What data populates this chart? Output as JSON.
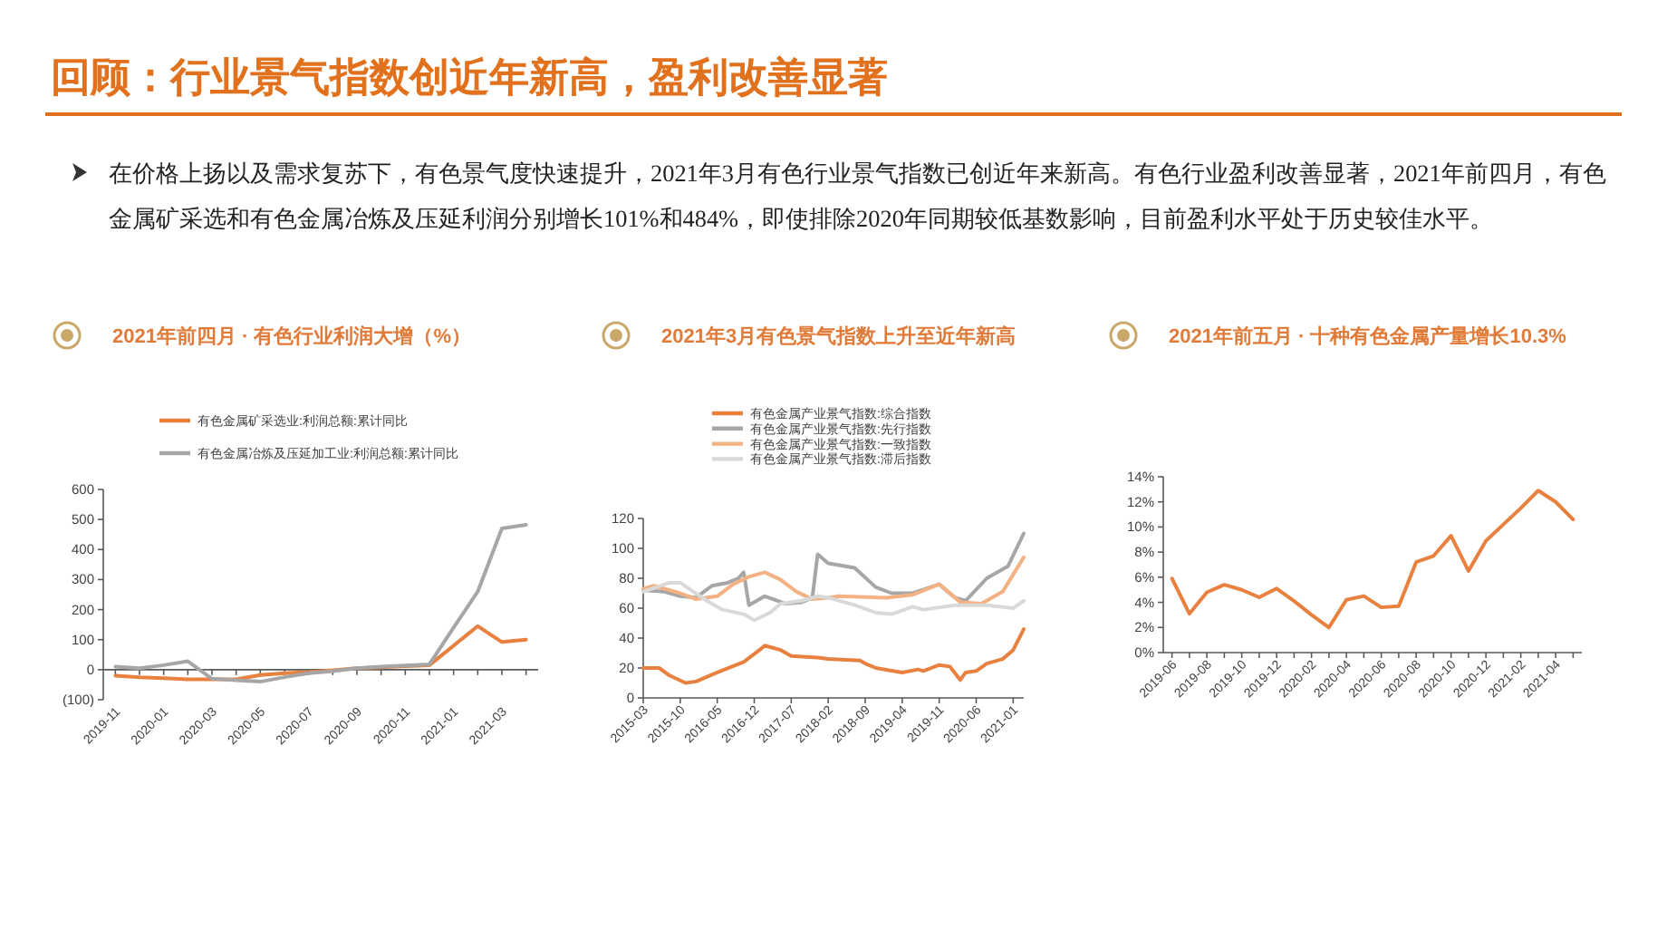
{
  "chart_data": [
    {
      "type": "other",
      "title": "回顾：行业景气指数创近年新高，盈利改善显著",
      "annotations": [
        "在价格上扬以及需求复苏下，有色景气度快速提升，2021年3月有色行业景气指数已创近年来新高。有色行业盈利改善显著，2021年前四月，有色金属矿采选和有色金属冶炼及压延利润分别增长101%和484%，即使排除2020年同期较低基数影响，目前盈利水平处于历史较佳水平。"
      ]
    },
    {
      "type": "line",
      "title": "2021年前四月 · 有色行业利润大增（%）",
      "legend": "top",
      "categories": [
        "2019-11",
        null,
        "2020-01",
        null,
        "2020-03",
        null,
        "2020-05",
        null,
        "2020-07",
        null,
        "2020-09",
        null,
        "2020-11",
        null,
        "2021-01",
        null,
        "2021-03",
        null
      ],
      "ylim": [
        -100,
        600
      ],
      "yticks": [
        {
          "value": -100,
          "label": "(100)"
        },
        0,
        100,
        200,
        300,
        400,
        500,
        600
      ],
      "series": [
        {
          "name": "有色金属矿采选业:利润总额:累计同比",
          "color": "#e8803f",
          "values": [
            -20,
            -25,
            -28,
            -32,
            -32,
            -32,
            -18,
            -12,
            -8,
            -2,
            5,
            8,
            12,
            15,
            80,
            145,
            92,
            100
          ]
        },
        {
          "name": "有色金属冶炼及压延加工业:利润总额:累计同比",
          "color": "#a6a6a6",
          "values": [
            10,
            5,
            15,
            28,
            -30,
            -35,
            -40,
            -25,
            -12,
            -5,
            5,
            10,
            14,
            18,
            140,
            260,
            470,
            482
          ]
        }
      ]
    },
    {
      "type": "line",
      "title": "2021年3月有色景气指数上升至近年新高",
      "legend": "top",
      "xlim": [
        "2015-03",
        "2021-03"
      ],
      "xticks": [
        "2015-03",
        "2015-10",
        "2016-05",
        "2016-12",
        "2017-07",
        "2018-02",
        "2018-09",
        "2019-04",
        "2019-11",
        "2020-06",
        "2021-01"
      ],
      "ylim": [
        0,
        120
      ],
      "yticks": [
        0,
        20,
        40,
        60,
        80,
        100,
        120
      ],
      "series": [
        {
          "name": "有色金属产业景气指数:综合指数",
          "color": "#e8803f",
          "x": [
            "2015-03",
            "2015-06",
            "2015-08",
            "2015-11",
            "2016-01",
            "2016-05",
            "2016-10",
            "2017-01",
            "2017-02",
            "2017-05",
            "2017-07",
            "2017-12",
            "2018-02",
            "2018-08",
            "2018-09",
            "2018-11",
            "2019-04",
            "2019-07",
            "2019-08",
            "2019-11",
            "2020-01",
            "2020-03",
            "2020-04",
            "2020-06",
            "2020-08",
            "2020-11",
            "2021-01",
            "2021-03"
          ],
          "values": [
            20,
            20,
            15,
            10,
            11,
            17,
            24,
            32,
            35,
            32,
            28,
            27,
            26,
            25,
            23,
            20,
            17,
            19,
            18,
            22,
            21,
            12,
            17,
            18,
            23,
            26,
            32,
            46
          ]
        },
        {
          "name": "有色金属产业景气指数:先行指数",
          "color": "#a6a6a6",
          "x": [
            "2015-03",
            "2015-07",
            "2015-10",
            "2016-01",
            "2016-04",
            "2016-07",
            "2016-09",
            "2016-10",
            "2016-11",
            "2017-02",
            "2017-06",
            "2017-09",
            "2017-11",
            "2017-12",
            "2018-02",
            "2018-07",
            "2018-11",
            "2019-02",
            "2019-06",
            "2019-11",
            "2020-02",
            "2020-04",
            "2020-08",
            "2020-12",
            "2021-03"
          ],
          "values": [
            72,
            71,
            68,
            67,
            75,
            77,
            80,
            84,
            62,
            68,
            63,
            64,
            67,
            96,
            90,
            87,
            74,
            70,
            70,
            76,
            67,
            65,
            80,
            88,
            110
          ]
        },
        {
          "name": "有色金属产业景气指数:一致指数",
          "color": "#f4b183",
          "x": [
            "2015-03",
            "2015-05",
            "2015-10",
            "2016-01",
            "2016-05",
            "2016-08",
            "2016-11",
            "2017-02",
            "2017-05",
            "2017-08",
            "2017-11",
            "2018-02",
            "2018-04",
            "2019-01",
            "2019-06",
            "2019-11",
            "2020-03",
            "2020-07",
            "2020-11",
            "2021-03"
          ],
          "values": [
            73,
            75,
            70,
            66,
            68,
            76,
            81,
            84,
            79,
            71,
            66,
            67,
            68,
            67,
            69,
            76,
            64,
            63,
            71,
            94
          ]
        },
        {
          "name": "有色金属产业景气指数:滞后指数",
          "color": "#d9d9d9",
          "x": [
            "2015-03",
            "2015-08",
            "2015-10",
            "2016-03",
            "2016-06",
            "2016-10",
            "2016-12",
            "2017-03",
            "2017-05",
            "2017-09",
            "2017-12",
            "2018-02",
            "2018-07",
            "2018-11",
            "2019-02",
            "2019-06",
            "2019-08",
            "2020-02",
            "2020-08",
            "2021-01",
            "2021-03"
          ],
          "values": [
            71,
            77,
            77,
            65,
            59,
            56,
            52,
            57,
            63,
            65,
            68,
            67,
            62,
            57,
            56,
            61,
            59,
            62,
            62,
            60,
            65
          ]
        }
      ]
    },
    {
      "type": "line",
      "title": "2021年前五月 · 十种有色金属产量增长10.3%",
      "categories": [
        "2019-06",
        null,
        "2019-08",
        null,
        "2019-10",
        null,
        "2019-12",
        null,
        "2020-02",
        null,
        "2020-04",
        null,
        "2020-06",
        null,
        "2020-08",
        null,
        "2020-10",
        null,
        "2020-12",
        null,
        "2021-02",
        null,
        "2021-04",
        null
      ],
      "ylim": [
        0,
        14
      ],
      "yticks": [
        {
          "value": 0,
          "label": "0%"
        },
        {
          "value": 2,
          "label": "2%"
        },
        {
          "value": 4,
          "label": "4%"
        },
        {
          "value": 6,
          "label": "6%"
        },
        {
          "value": 8,
          "label": "8%"
        },
        {
          "value": 10,
          "label": "10%"
        },
        {
          "value": 12,
          "label": "12%"
        },
        {
          "value": 14,
          "label": "14%"
        }
      ],
      "series": [
        {
          "color": "#e8803f",
          "values": [
            5.9,
            3.1,
            4.8,
            5.4,
            5.0,
            4.4,
            5.1,
            4.1,
            3.0,
            2.0,
            4.2,
            4.5,
            3.6,
            3.7,
            7.2,
            7.7,
            9.3,
            6.5,
            8.9,
            10.2,
            11.5,
            12.9,
            12.0,
            10.6
          ]
        }
      ]
    }
  ]
}
